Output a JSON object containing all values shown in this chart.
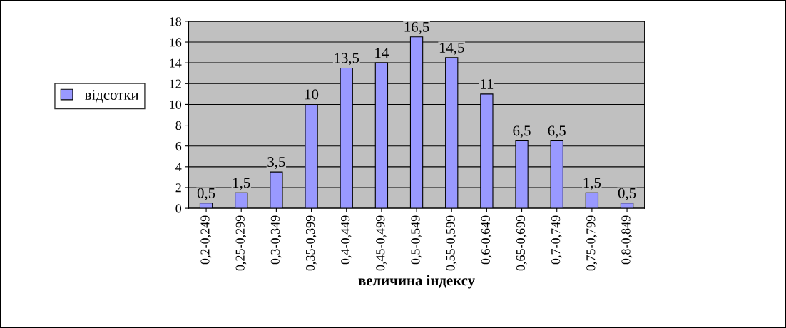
{
  "chart_data": {
    "type": "bar",
    "xlabel": "величина індексу",
    "categories": [
      "0,2-0,249",
      "0,25-0,299",
      "0,3-0,349",
      "0,35-0,399",
      "0,4-0,449",
      "0,45-0,499",
      "0,5-0,549",
      "0,55-0,599",
      "0,6-0,649",
      "0,65-0,699",
      "0,7-0,749",
      "0,75-0,799",
      "0,8-0,849"
    ],
    "series": [
      {
        "name": "відсотки",
        "color": "#9999ff",
        "values": [
          0.5,
          1.5,
          3.5,
          10,
          13.5,
          14,
          16.5,
          14.5,
          11,
          6.5,
          6.5,
          1.5,
          0.5
        ],
        "value_labels": [
          "0,5",
          "1,5",
          "3,5",
          "10",
          "13,5",
          "14",
          "16,5",
          "14,5",
          "11",
          "6,5",
          "6,5",
          "1,5",
          "0,5"
        ]
      }
    ],
    "ylim": [
      0,
      18
    ],
    "yticks": [
      0,
      2,
      4,
      6,
      8,
      10,
      12,
      14,
      16,
      18
    ],
    "grid": "y",
    "legend": "left"
  }
}
